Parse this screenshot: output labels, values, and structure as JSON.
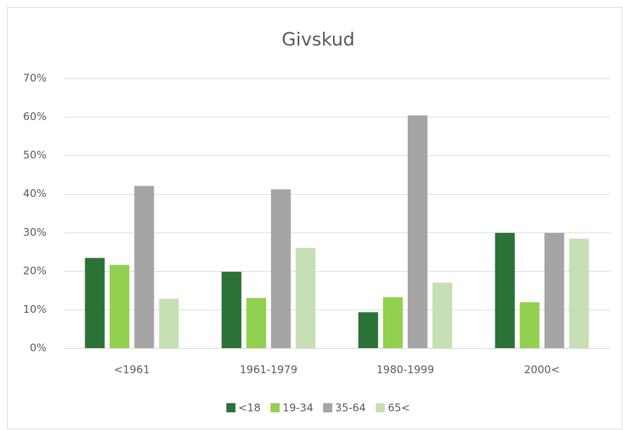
{
  "chart_data": {
    "type": "bar",
    "title": "Givskud",
    "categories": [
      "<1961",
      "1961-1979",
      "1980-1999",
      "2000<"
    ],
    "series": [
      {
        "name": "<18",
        "color": "#2a7236",
        "values": [
          23.4,
          19.8,
          9.3,
          29.9
        ]
      },
      {
        "name": "19-34",
        "color": "#92d050",
        "values": [
          21.6,
          13.0,
          13.2,
          11.9
        ]
      },
      {
        "name": "35-64",
        "color": "#a5a5a5",
        "values": [
          42.1,
          41.2,
          60.4,
          29.9
        ]
      },
      {
        "name": "65<",
        "color": "#c5e0b4",
        "values": [
          12.8,
          26.0,
          17.0,
          28.4
        ]
      }
    ],
    "ylim": [
      0,
      70
    ],
    "yticks": [
      {
        "value": 0,
        "label": "0%"
      },
      {
        "value": 10,
        "label": "10%"
      },
      {
        "value": 20,
        "label": "20%"
      },
      {
        "value": 30,
        "label": "30%"
      },
      {
        "value": 40,
        "label": "40%"
      },
      {
        "value": 50,
        "label": "50%"
      },
      {
        "value": 60,
        "label": "60%"
      },
      {
        "value": 70,
        "label": "70%"
      }
    ],
    "grid": true,
    "legend": "bottom"
  }
}
